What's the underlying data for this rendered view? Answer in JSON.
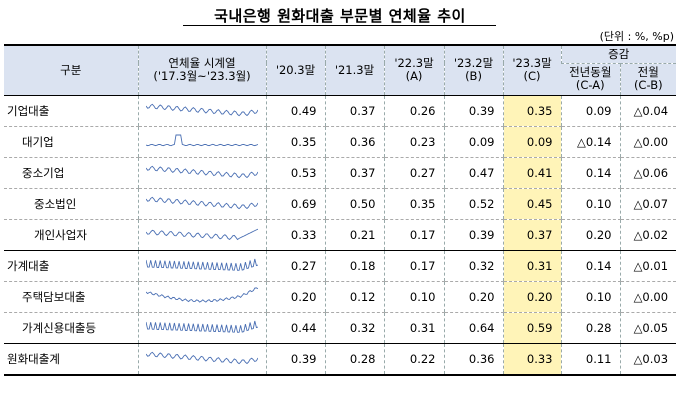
{
  "title": "국내은행 원화대출 부문별 연체율 추이",
  "unit": "(단위 : %, %p)",
  "header": {
    "category": "구분",
    "trend_line1": "연체율 시계열",
    "trend_line2": "('17.3월~'23.3월)",
    "p1": "'20.3말",
    "p2": "'21.3말",
    "p3_line1": "'22.3말",
    "p3_line2": "(A)",
    "p4_line1": "'23.2말",
    "p4_line2": "(B)",
    "p5_line1": "'23.3말",
    "p5_line2": "(C)",
    "change": "증감",
    "yoy_line1": "전년동월",
    "yoy_line2": "(C-A)",
    "mom_line1": "전월",
    "mom_line2": "(C-B)"
  },
  "rows": [
    {
      "label": "기업대출",
      "v1": "0.49",
      "v2": "0.37",
      "v3": "0.26",
      "v4": "0.39",
      "v5": "0.35",
      "yoy": "0.09",
      "mom": "△0.04",
      "spark": "wavy"
    },
    {
      "label": "대기업",
      "v1": "0.35",
      "v2": "0.36",
      "v3": "0.23",
      "v4": "0.09",
      "v5": "0.09",
      "yoy": "△0.14",
      "mom": "△0.00",
      "spark": "spike"
    },
    {
      "label": "중소기업",
      "v1": "0.53",
      "v2": "0.37",
      "v3": "0.27",
      "v4": "0.47",
      "v5": "0.41",
      "yoy": "0.14",
      "mom": "△0.06",
      "spark": "wavy"
    },
    {
      "label": "중소법인",
      "v1": "0.69",
      "v2": "0.50",
      "v3": "0.35",
      "v4": "0.52",
      "v5": "0.45",
      "yoy": "0.10",
      "mom": "△0.07",
      "spark": "wavy"
    },
    {
      "label": "개인사업자",
      "v1": "0.33",
      "v2": "0.21",
      "v3": "0.17",
      "v4": "0.39",
      "v5": "0.37",
      "yoy": "0.20",
      "mom": "△0.02",
      "spark": "rise"
    },
    {
      "label": "가계대출",
      "v1": "0.27",
      "v2": "0.18",
      "v3": "0.17",
      "v4": "0.32",
      "v5": "0.31",
      "yoy": "0.14",
      "mom": "△0.01",
      "spark": "zigzag"
    },
    {
      "label": "주택담보대출",
      "v1": "0.20",
      "v2": "0.12",
      "v3": "0.10",
      "v4": "0.20",
      "v5": "0.20",
      "yoy": "0.10",
      "mom": "△0.00",
      "spark": "dip"
    },
    {
      "label": "가계신용대출등",
      "v1": "0.44",
      "v2": "0.32",
      "v3": "0.31",
      "v4": "0.64",
      "v5": "0.59",
      "yoy": "0.28",
      "mom": "△0.05",
      "spark": "zigzag"
    },
    {
      "label": "원화대출계",
      "v1": "0.39",
      "v2": "0.28",
      "v3": "0.22",
      "v4": "0.36",
      "v5": "0.33",
      "yoy": "0.11",
      "mom": "△0.03",
      "spark": "wavy"
    }
  ]
}
